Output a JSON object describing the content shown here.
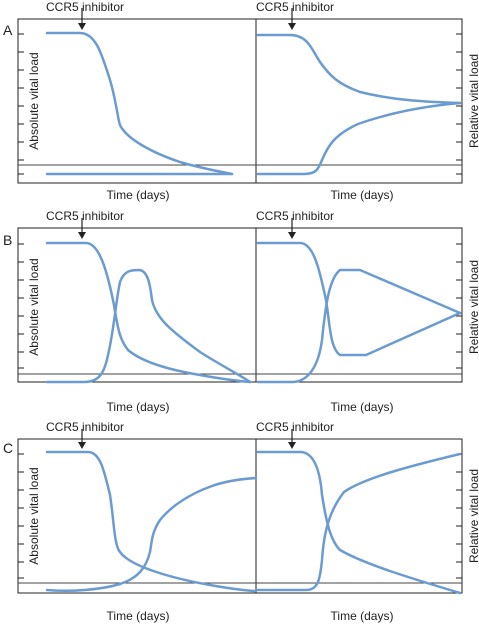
{
  "figure": {
    "line_color": "#6b9bd0",
    "frame_color": "#222222",
    "panels": [
      {
        "id": "A",
        "left_panel": {
          "annotation": "CCR5 inhibitor",
          "xlabel": "Time (days)",
          "ylabel": "Absolute vital load"
        },
        "right_panel": {
          "annotation": "CCR5 inhibitor",
          "xlabel": "Time (days)",
          "ylabel": "Relative vital load"
        }
      },
      {
        "id": "B",
        "left_panel": {
          "annotation": "CCR5 inhibitor",
          "xlabel": "Time (days)",
          "ylabel": "Absolute vital load"
        },
        "right_panel": {
          "annotation": "CCR5 inhibitor",
          "xlabel": "Time (days)",
          "ylabel": "Relative vital load"
        }
      },
      {
        "id": "C",
        "left_panel": {
          "annotation": "CCR5 inhibitor",
          "xlabel": "Time (days)",
          "ylabel": "Absolute vital load"
        },
        "right_panel": {
          "annotation": "CCR5 inhibitor",
          "xlabel": "Time (days)",
          "ylabel": "Relative vital load"
        }
      }
    ]
  }
}
